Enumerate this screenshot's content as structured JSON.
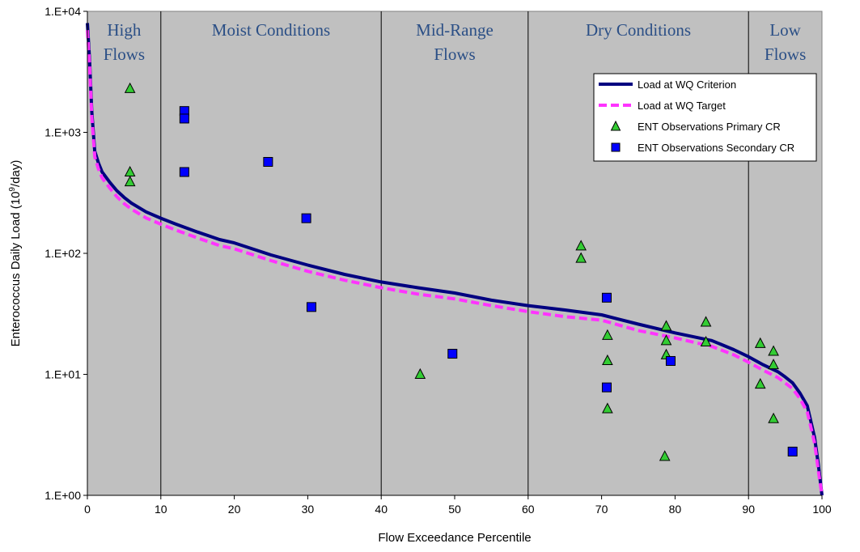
{
  "chart_data": {
    "type": "line",
    "xlabel": "Flow Exceedance Percentile",
    "ylabel_main": "Enterococcus Daily Load (10",
    "ylabel_sup": "9",
    "ylabel_tail": "/day)",
    "xlim": [
      0,
      100
    ],
    "ylim": [
      1,
      10000
    ],
    "yscale": "log",
    "xticks": [
      "0",
      "10",
      "20",
      "30",
      "40",
      "50",
      "60",
      "70",
      "80",
      "90",
      "100"
    ],
    "xtick_values": [
      0,
      10,
      20,
      30,
      40,
      50,
      60,
      70,
      80,
      90,
      100
    ],
    "yticks": [
      "1.E+00",
      "1.E+01",
      "1.E+02",
      "1.E+03",
      "1.E+04"
    ],
    "ytick_values": [
      1,
      10,
      100,
      1000,
      10000
    ],
    "background_color": "#c0c0c0",
    "zone_dividers": [
      10,
      40,
      60,
      90
    ],
    "zones": [
      {
        "lines": [
          "High",
          "Flows"
        ],
        "x": 5
      },
      {
        "lines": [
          "Moist Conditions"
        ],
        "x": 25
      },
      {
        "lines": [
          "Mid-Range",
          "Flows"
        ],
        "x": 50
      },
      {
        "lines": [
          "Dry Conditions"
        ],
        "x": 75
      },
      {
        "lines": [
          "Low",
          "Flows"
        ],
        "x": 95
      }
    ],
    "legend_position": "top-right",
    "series": [
      {
        "name": "Load at WQ Criterion",
        "kind": "line",
        "color": "#000080",
        "x": [
          0,
          0.3,
          0.6,
          1,
          1.5,
          2,
          3,
          4,
          5,
          6,
          8,
          10,
          12,
          15,
          18,
          20,
          25,
          30,
          35,
          40,
          45,
          50,
          55,
          60,
          65,
          70,
          75,
          80,
          85,
          88,
          90,
          92,
          94,
          95,
          96,
          97,
          98,
          99,
          99.5,
          100
        ],
        "y": [
          8000,
          4000,
          1500,
          700,
          560,
          470,
          390,
          330,
          290,
          260,
          220,
          195,
          175,
          150,
          130,
          122,
          97,
          80,
          67,
          58,
          52,
          47,
          41,
          37,
          34,
          31,
          26,
          22,
          19,
          16,
          14,
          12,
          10.5,
          9.5,
          8.5,
          7,
          5.5,
          3,
          1.8,
          1
        ]
      },
      {
        "name": "Load at WQ Target",
        "kind": "line",
        "color": "#ff33ff",
        "x": [
          0,
          0.3,
          0.6,
          1,
          1.5,
          2,
          3,
          4,
          5,
          6,
          8,
          10,
          12,
          15,
          18,
          20,
          25,
          30,
          35,
          40,
          45,
          50,
          55,
          60,
          65,
          70,
          75,
          80,
          85,
          88,
          90,
          92,
          94,
          95,
          96,
          97,
          98,
          99,
          99.5,
          100
        ],
        "y": [
          7000,
          3600,
          1350,
          630,
          500,
          420,
          350,
          295,
          258,
          232,
          196,
          174,
          156,
          134,
          116,
          109,
          87,
          71,
          60,
          52,
          46,
          42,
          37,
          33,
          30,
          28,
          23,
          20,
          17,
          14.5,
          12.6,
          10.8,
          9.4,
          8.5,
          7.6,
          6.3,
          4.9,
          2.7,
          1.6,
          0.9
        ]
      },
      {
        "name": "ENT Observations Primary CR",
        "kind": "triangle",
        "color": "#33cc33",
        "x": [
          5.8,
          5.8,
          5.8,
          45.3,
          67.2,
          67.2,
          70.8,
          70.8,
          70.8,
          78.6,
          78.8,
          78.8,
          78.8,
          84.2,
          84.2,
          91.6,
          91.6,
          93.4,
          93.4,
          93.4
        ],
        "y": [
          2300,
          470,
          390,
          10,
          115,
          91,
          21,
          13,
          5.2,
          2.1,
          25,
          19,
          14.5,
          27,
          18.5,
          18,
          8.3,
          15.5,
          12,
          4.3
        ]
      },
      {
        "name": "ENT Observations Secondary CR",
        "kind": "square",
        "color": "#0000ff",
        "x": [
          13.2,
          13.2,
          13.2,
          24.6,
          29.8,
          30.5,
          49.7,
          70.7,
          70.7,
          79.4,
          96.0
        ],
        "y": [
          1500,
          1300,
          470,
          570,
          195,
          36,
          14.8,
          43,
          7.8,
          12.9,
          2.3
        ]
      }
    ]
  }
}
